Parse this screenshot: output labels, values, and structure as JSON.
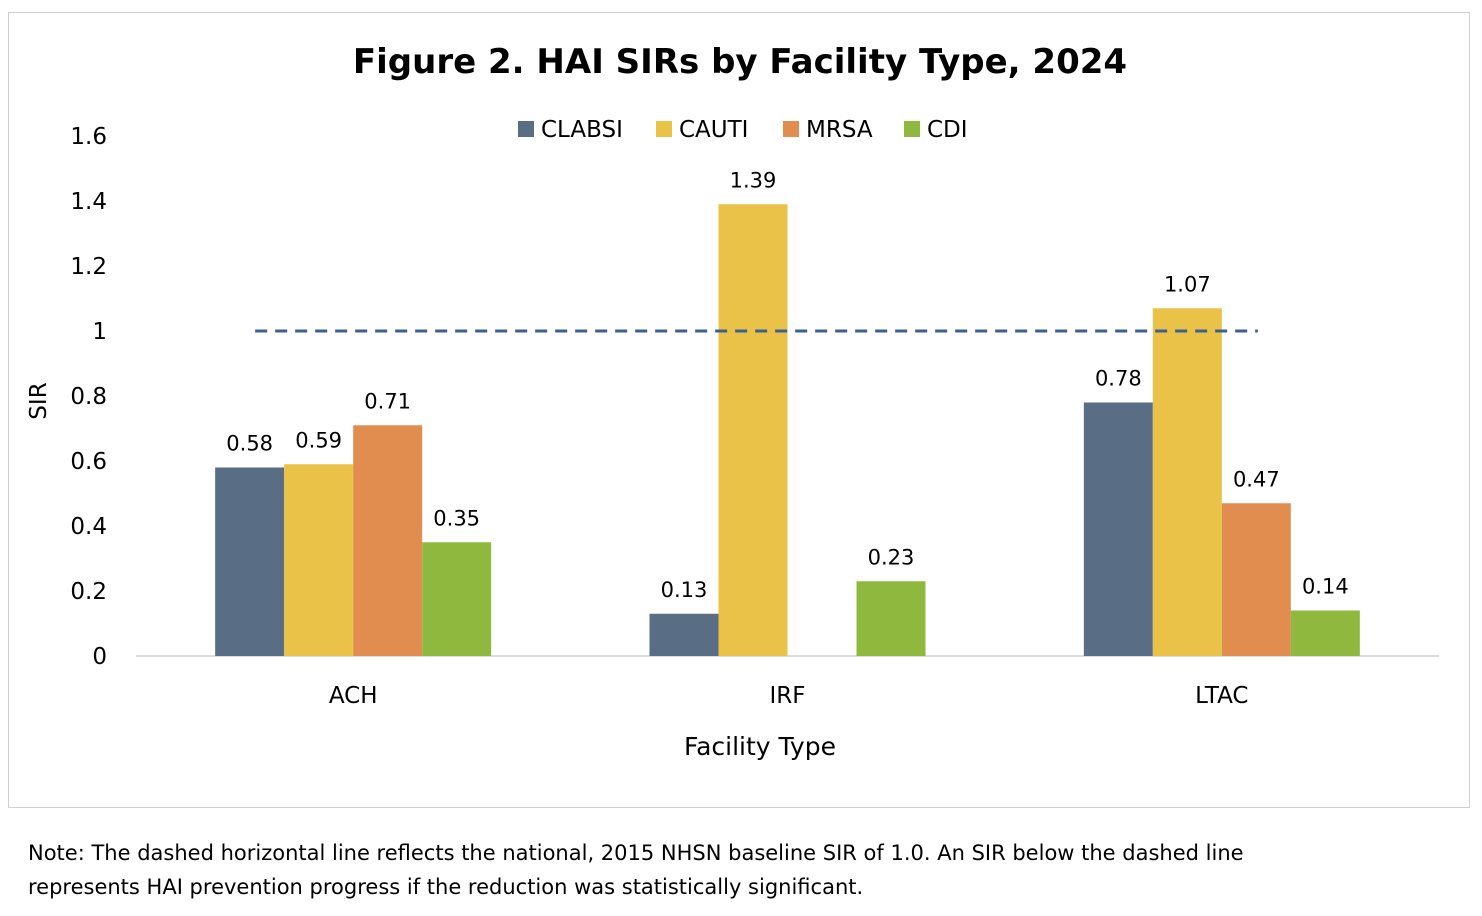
{
  "chart_data": {
    "type": "bar",
    "title": "Figure 2. HAI SIRs by Facility Type, 2024",
    "xlabel": "Facility Type",
    "ylabel": "SIR",
    "categories": [
      "ACH",
      "IRF",
      "LTAC"
    ],
    "ylim": [
      0,
      1.6
    ],
    "yticks": [
      "0",
      "0.2",
      "0.4",
      "0.6",
      "0.8",
      "1",
      "1.2",
      "1.4",
      "1.6"
    ],
    "legend_position": "top",
    "grid": false,
    "series": [
      {
        "name": "CLABSI",
        "color": "#596d85",
        "values": [
          0.58,
          0.13,
          0.78
        ],
        "labels": [
          "0.58",
          "0.13",
          "0.78"
        ]
      },
      {
        "name": "CAUTI",
        "color": "#e9c247",
        "values": [
          0.59,
          1.39,
          1.07
        ],
        "labels": [
          "0.59",
          "1.39",
          "1.07"
        ]
      },
      {
        "name": "MRSA",
        "color": "#e28d50",
        "values": [
          0.71,
          null,
          0.47
        ],
        "labels": [
          "0.71",
          "",
          "0.47"
        ]
      },
      {
        "name": "CDI",
        "color": "#8fb83e",
        "values": [
          0.35,
          0.23,
          0.14
        ],
        "labels": [
          "0.35",
          "0.23",
          "0.14"
        ]
      }
    ],
    "reference_line": {
      "value": 1.0,
      "style": "dashed",
      "color": "#3d5f91"
    }
  },
  "note": {
    "line1": "Note: The dashed horizontal line reflects the national, 2015 NHSN baseline SIR of 1.0. An SIR below the dashed line",
    "line2": "represents HAI prevention progress if the reduction was statistically significant."
  }
}
